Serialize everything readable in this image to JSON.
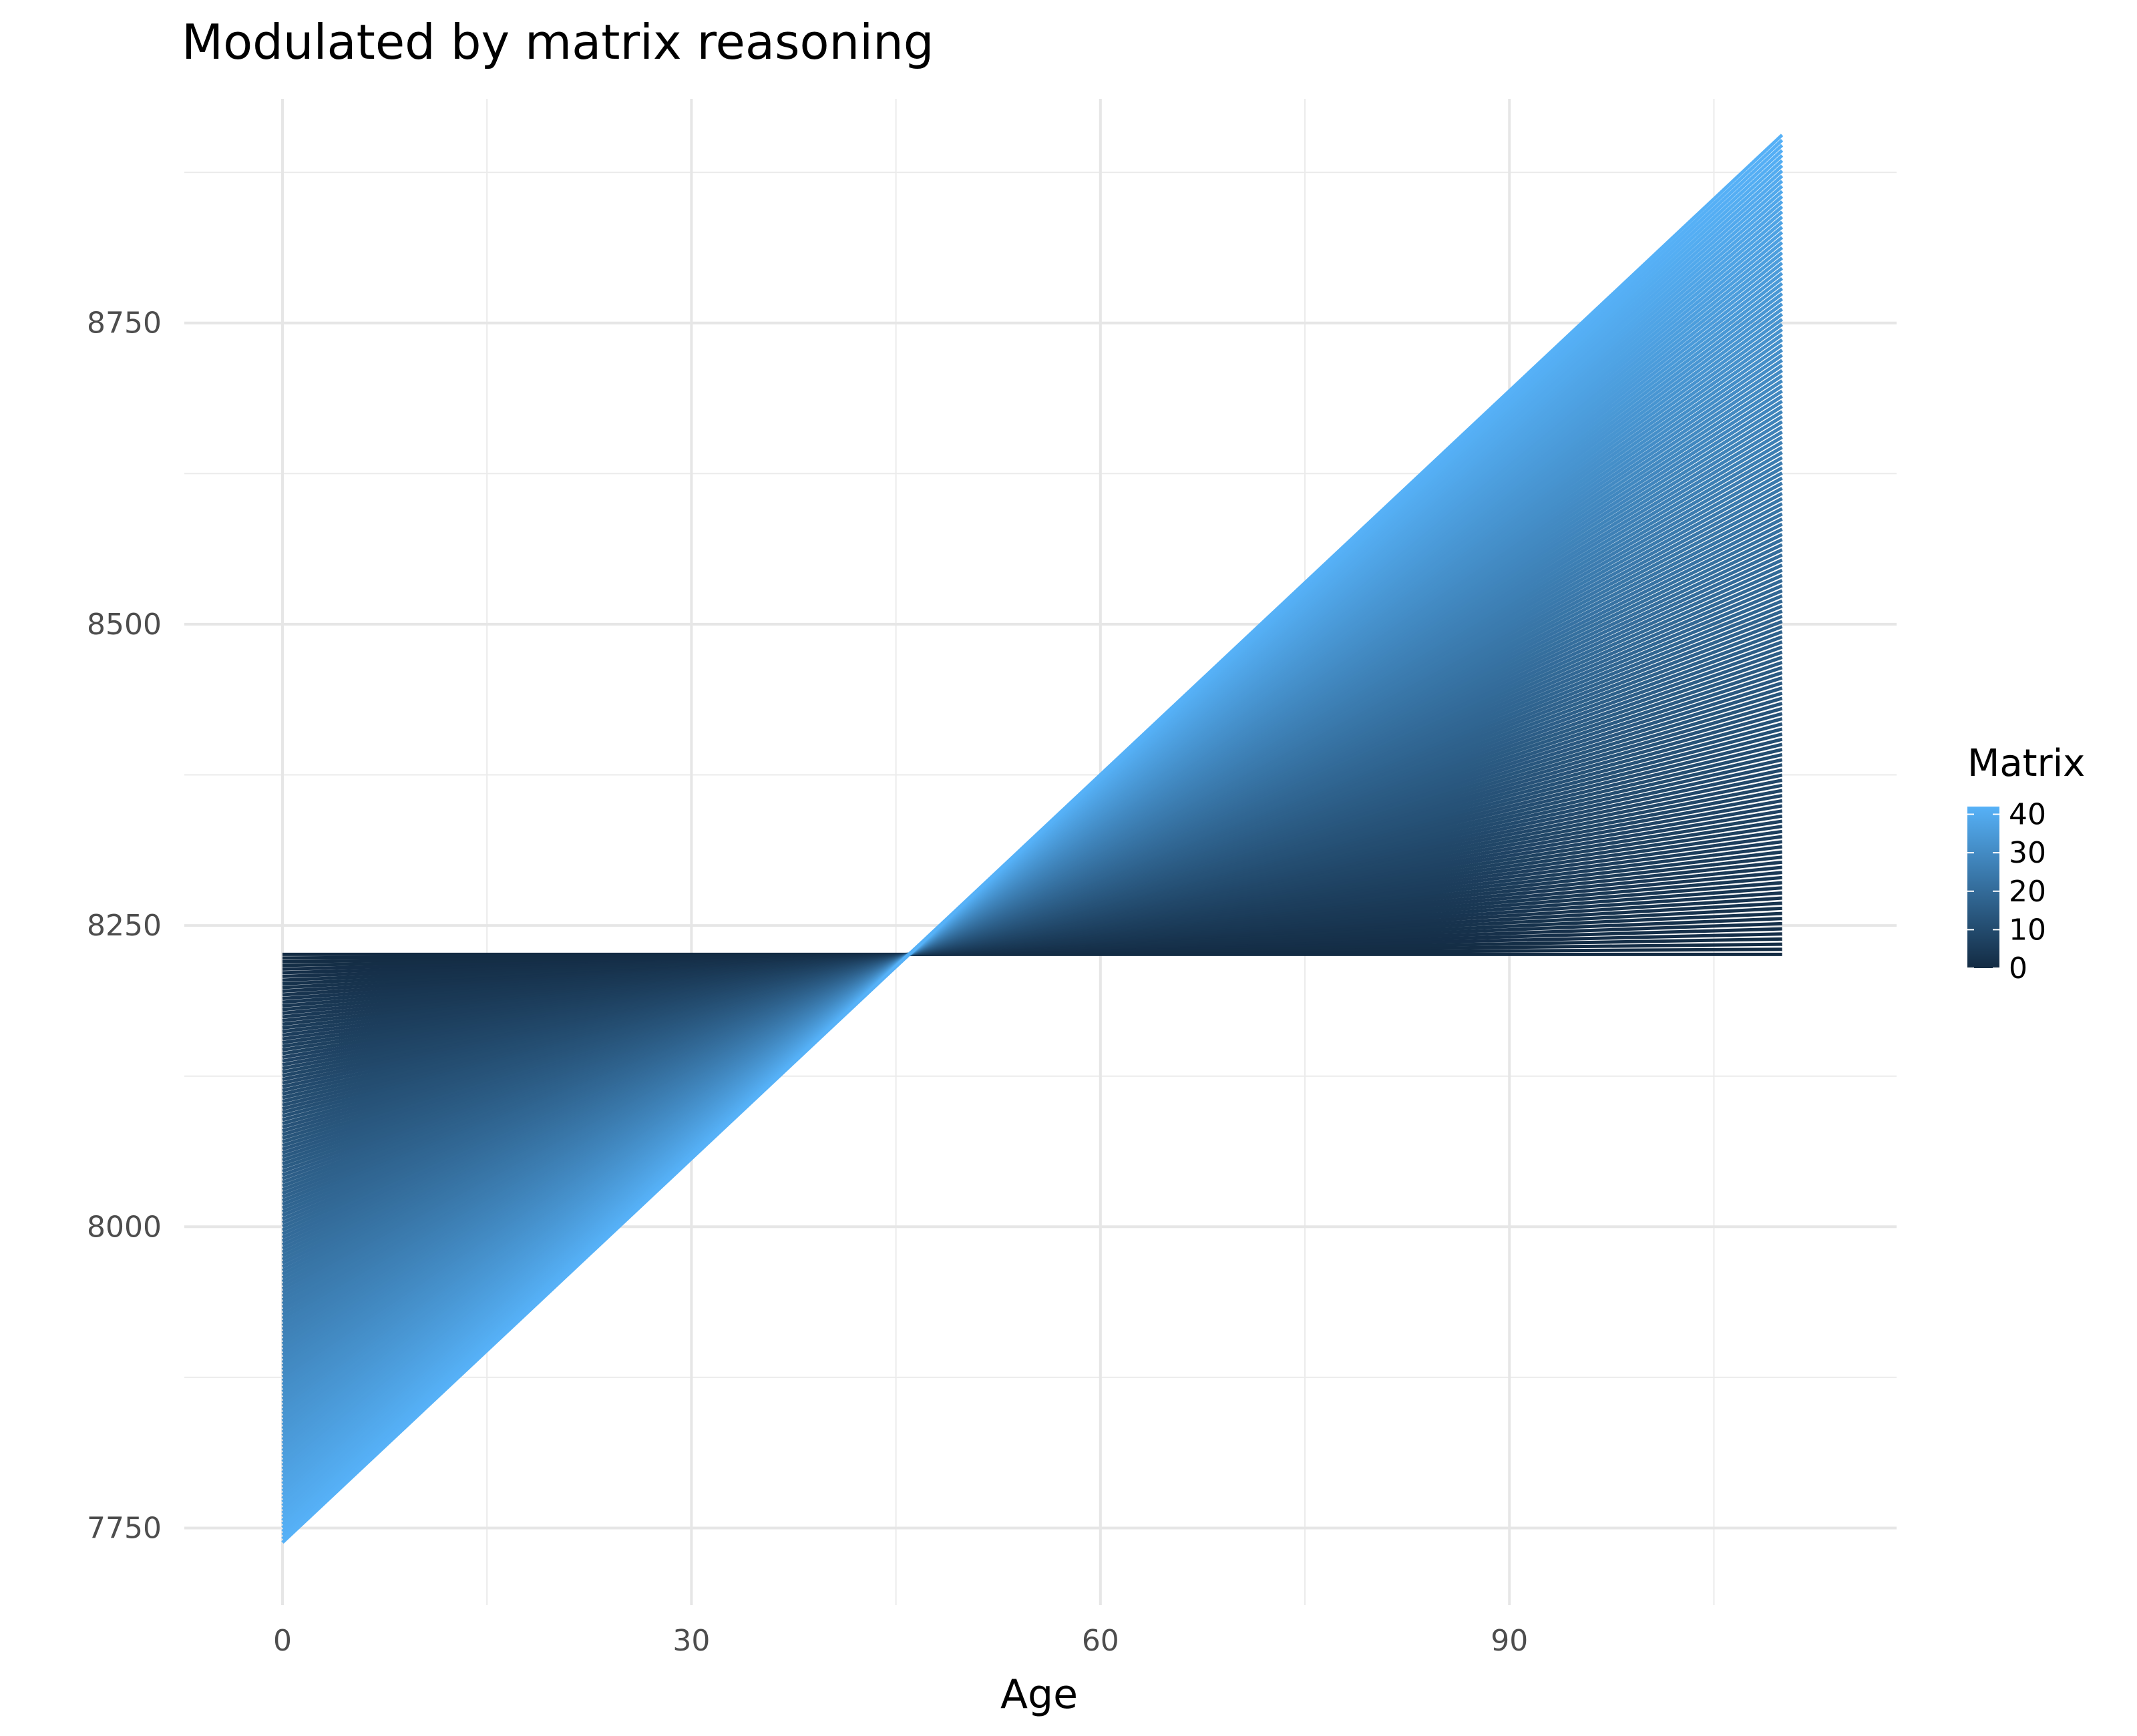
{
  "chart_data": {
    "type": "line",
    "title": "Modulated by matrix reasoning",
    "xlabel": "Age",
    "ylabel": "",
    "xlim": [
      -7.2,
      118.4
    ],
    "ylim": [
      7686,
      8936
    ],
    "xticks": [
      0,
      30,
      60,
      90
    ],
    "xticklabels": [
      "0",
      "30",
      "60",
      "90"
    ],
    "yticks": [
      7750,
      8000,
      8250,
      8500,
      8750
    ],
    "yticklabels": [
      "7750",
      "8000",
      "8250",
      "8500",
      "8750"
    ],
    "grid": true,
    "series_family": {
      "description_of_lines": "one straight line per Matrix value, all passing through a common point",
      "x_range": [
        0,
        110
      ],
      "pivot": {
        "x": 46,
        "y": 8226
      },
      "endpoints_at_x0": {
        "matrix_0": 8226,
        "matrix_42": 7738
      },
      "endpoints_at_x110": {
        "matrix_0": 8226,
        "matrix_42": 8906
      },
      "matrix_range": [
        0,
        42
      ]
    },
    "legend": {
      "title": "Matrix",
      "position": "right",
      "ticks": [
        0,
        10,
        20,
        30,
        40
      ],
      "ticklabels": [
        "0",
        "10",
        "20",
        "30",
        "40"
      ],
      "range": [
        0,
        42
      ],
      "colors": {
        "low": "#132B43",
        "high": "#56B1F7"
      }
    }
  }
}
